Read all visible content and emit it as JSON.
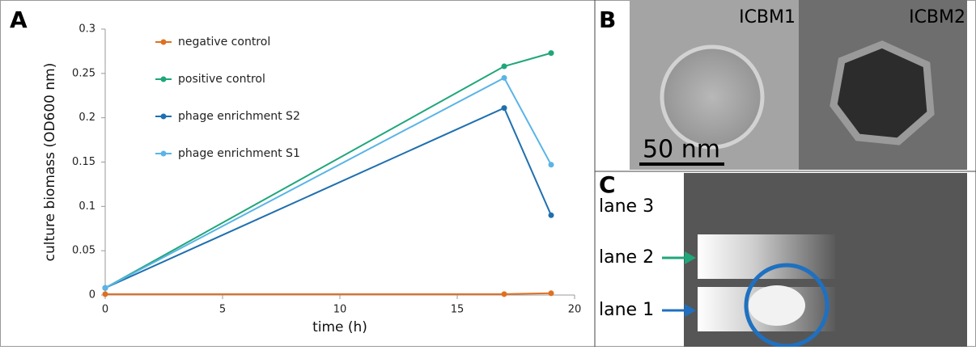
{
  "chart_data": {
    "type": "line",
    "panel_label": "A",
    "x_label": "time (h)",
    "y_label": "culture biomass (OD600 nm)",
    "x": [
      0,
      17,
      19
    ],
    "series": [
      {
        "name": "negative control",
        "color": "#e07020",
        "values": [
          0.001,
          0.001,
          0.002
        ]
      },
      {
        "name": "positive control",
        "color": "#1fa67a",
        "values": [
          0.008,
          0.258,
          0.273
        ]
      },
      {
        "name": "phage enrichment S2",
        "color": "#1f6faf",
        "values": [
          0.008,
          0.211,
          0.09
        ]
      },
      {
        "name": "phage enrichment S1",
        "color": "#5ab4e6",
        "values": [
          0.008,
          0.245,
          0.147
        ]
      }
    ],
    "xlim": [
      0,
      20
    ],
    "xticks": [
      0,
      5,
      10,
      15,
      20
    ],
    "ylim": [
      0,
      0.3
    ],
    "yticks": [
      0,
      0.05,
      0.1,
      0.15,
      0.2,
      0.25,
      0.3
    ],
    "grid": false,
    "legend": "top-left"
  },
  "micrographs": {
    "panel_label": "B",
    "names": [
      "ICBM1",
      "ICBM2"
    ],
    "scale_bar": "50 nm"
  },
  "gel": {
    "panel_label": "C",
    "lanes": [
      "lane 3",
      "lane 2",
      "lane 1"
    ]
  }
}
